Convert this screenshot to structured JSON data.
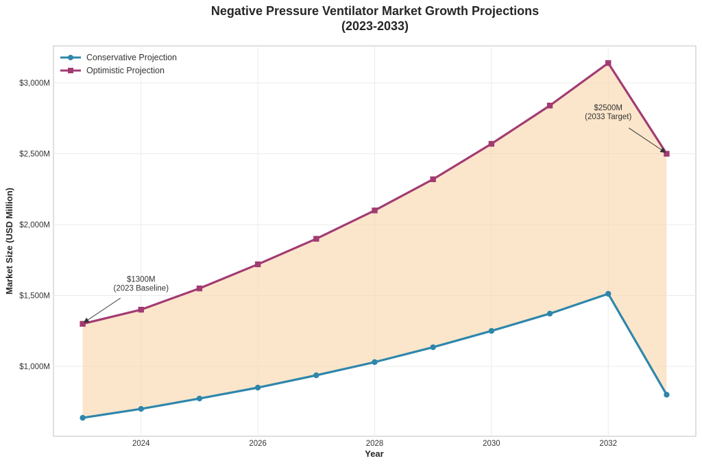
{
  "chart_data": {
    "type": "line",
    "title": "Negative Pressure Ventilator Market Growth Projections",
    "subtitle": "(2023-2033)",
    "xlabel": "Year",
    "ylabel": "Market Size (USD Million)",
    "x": [
      2023,
      2024,
      2025,
      2026,
      2027,
      2028,
      2029,
      2030,
      2031,
      2032,
      2033
    ],
    "xlim": [
      2022.5,
      2033.5
    ],
    "ylim": [
      507,
      3261
    ],
    "xticks": [
      2024,
      2026,
      2028,
      2030,
      2032
    ],
    "xtick_labels": [
      "2024",
      "2026",
      "2028",
      "2030",
      "2032"
    ],
    "yticks": [
      1000,
      1500,
      2000,
      2500,
      3000
    ],
    "ytick_labels": [
      "$1,000M",
      "$1,500M",
      "$2,000M",
      "$2,500M",
      "$3,000M"
    ],
    "grid": true,
    "legend_position": "top-left",
    "series": [
      {
        "name": "Conservative Projection",
        "color": "#2e86ab",
        "marker": "circle",
        "values": [
          637,
          700,
          773,
          850,
          937,
          1030,
          1135,
          1250,
          1372,
          1512,
          800
        ]
      },
      {
        "name": "Optimistic Projection",
        "color": "#a23b72",
        "marker": "square",
        "values": [
          1300,
          1400,
          1550,
          1720,
          1900,
          2100,
          2320,
          2570,
          2840,
          3140,
          2500
        ]
      }
    ],
    "fill_between": {
      "color": "#f8d6a8",
      "opacity": 0.6,
      "between": [
        "Conservative Projection",
        "Optimistic Projection"
      ]
    },
    "annotations": [
      {
        "lines": [
          "$1300M",
          "(2023 Baseline)"
        ],
        "x": 2023,
        "y": 1300,
        "text_x": 2024,
        "text_y": 1530
      },
      {
        "lines": [
          "$2500M",
          "(2033 Target)"
        ],
        "x": 2033,
        "y": 2500,
        "text_x": 2032,
        "text_y": 2740
      }
    ]
  }
}
